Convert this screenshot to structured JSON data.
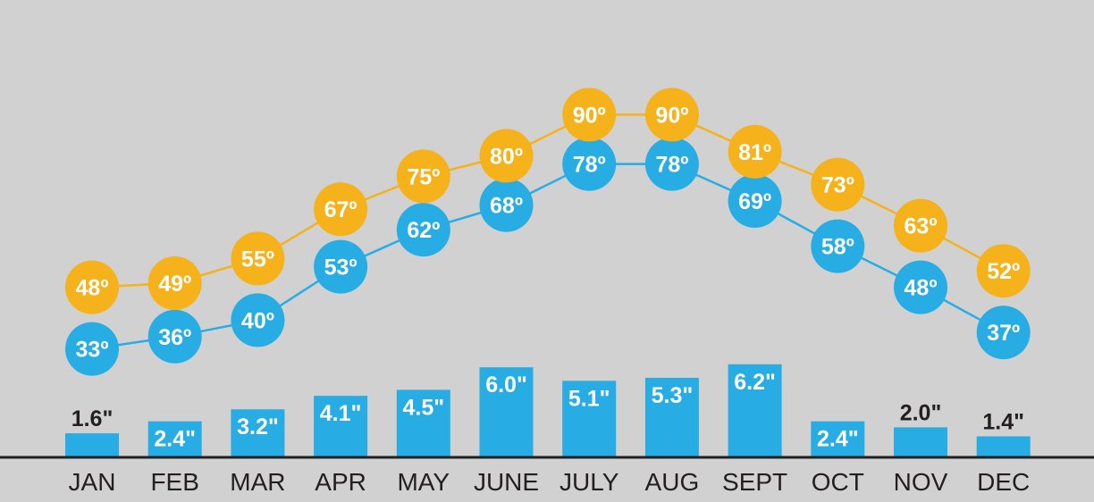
{
  "chart_data": {
    "type": "line",
    "categories": [
      "JAN",
      "FEB",
      "MAR",
      "APR",
      "MAY",
      "JUNE",
      "JULY",
      "AUG",
      "SEPT",
      "OCT",
      "NOV",
      "DEC"
    ],
    "series": [
      {
        "key": "high",
        "type": "line",
        "color": "#f5b21b",
        "values": [
          48,
          49,
          55,
          67,
          75,
          80,
          90,
          90,
          81,
          73,
          63,
          52
        ],
        "labels": [
          "48º",
          "49º",
          "55º",
          "67º",
          "75º",
          "80º",
          "90º",
          "90º",
          "81º",
          "73º",
          "63º",
          "52º"
        ]
      },
      {
        "key": "low",
        "type": "line",
        "color": "#27ade4",
        "values": [
          33,
          36,
          40,
          53,
          62,
          68,
          78,
          78,
          69,
          58,
          48,
          37
        ],
        "labels": [
          "33º",
          "36º",
          "40º",
          "53º",
          "62º",
          "68º",
          "78º",
          "78º",
          "69º",
          "58º",
          "48º",
          "37º"
        ]
      },
      {
        "key": "precip",
        "type": "bar",
        "color": "#27ade4",
        "values": [
          1.6,
          2.4,
          3.2,
          4.1,
          4.5,
          6.0,
          5.1,
          5.3,
          6.2,
          2.4,
          2.0,
          1.4
        ],
        "labels": [
          "1.6\"",
          "2.4\"",
          "3.2\"",
          "4.1\"",
          "4.5\"",
          "6.0\"",
          "5.1\"",
          "5.3\"",
          "6.2\"",
          "2.4\"",
          "2.0\"",
          "1.4\""
        ]
      }
    ],
    "background": "#d1d1d1",
    "axis_color": "#231f20",
    "grid": false,
    "legend": "none"
  }
}
